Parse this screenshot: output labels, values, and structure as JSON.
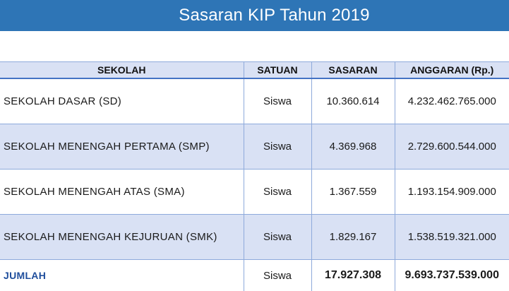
{
  "title": "Sasaran KIP Tahun 2019",
  "colors": {
    "title_bar": "#2e75b6",
    "header_row": "#d9e1f4",
    "band_row": "#d9e1f4",
    "total_label": "#1f4e9c"
  },
  "table": {
    "headers": [
      "SEKOLAH",
      "SATUAN",
      "SASARAN",
      "ANGGARAN (Rp.)"
    ],
    "rows": [
      {
        "school": "SEKOLAH DASAR (SD)",
        "unit": "Siswa",
        "target": "10.360.614",
        "budget": "4.232.462.765.000"
      },
      {
        "school": "SEKOLAH MENENGAH PERTAMA (SMP)",
        "unit": "Siswa",
        "target": "4.369.968",
        "budget": "2.729.600.544.000"
      },
      {
        "school": "SEKOLAH MENENGAH ATAS (SMA)",
        "unit": "Siswa",
        "target": "1.367.559",
        "budget": "1.193.154.909.000"
      },
      {
        "school": "SEKOLAH MENENGAH KEJURUAN (SMK)",
        "unit": "Siswa",
        "target": "1.829.167",
        "budget": "1.538.519.321.000"
      }
    ],
    "total": {
      "label": "JUMLAH",
      "unit": "Siswa",
      "target": "17.927.308",
      "budget": "9.693.737.539.000"
    }
  }
}
